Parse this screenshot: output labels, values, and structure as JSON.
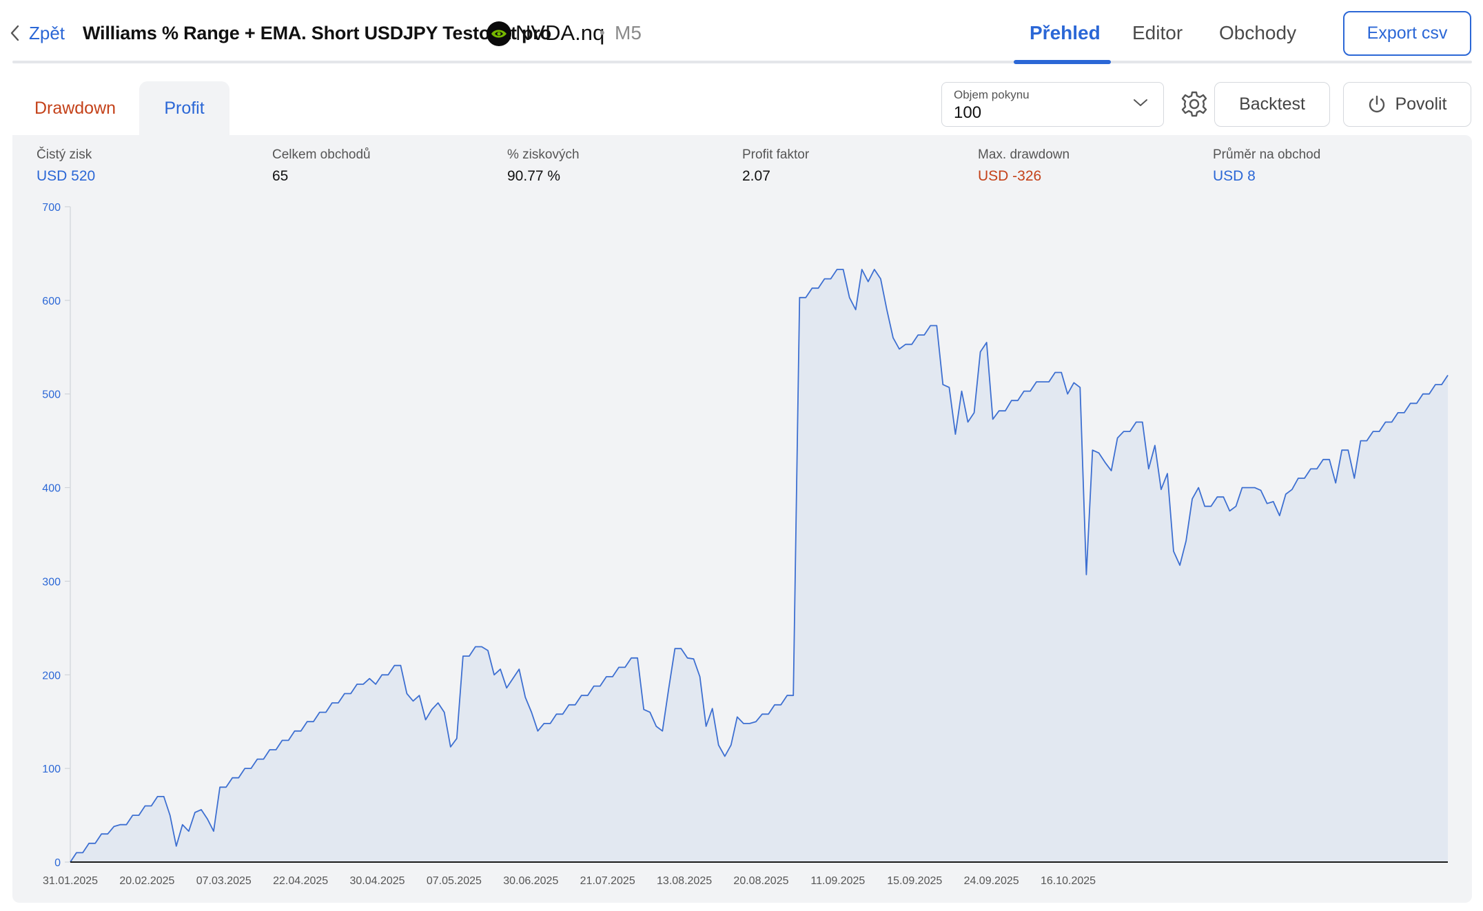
{
  "header": {
    "back_label": "Zpět",
    "strategy_title": "Williams % Range + EMA. Short USDJPY Testovat pro",
    "symbol": "NVDA.nq",
    "separator": "•",
    "timeframe": "M5",
    "tabs": [
      {
        "label": "Přehled",
        "active": true
      },
      {
        "label": "Editor",
        "active": false
      },
      {
        "label": "Obchody",
        "active": false
      }
    ],
    "export_label": "Export csv"
  },
  "subtabs": {
    "drawdown_label": "Drawdown",
    "profit_label": "Profit",
    "active": "Profit"
  },
  "controls": {
    "order_volume_label": "Objem pokynu",
    "order_volume_value": "100",
    "backtest_label": "Backtest",
    "enable_label": "Povolit"
  },
  "stats": [
    {
      "label": "Čistý zisk",
      "value": "USD 520",
      "color": "#2b67d6"
    },
    {
      "label": "Celkem obchodů",
      "value": "65",
      "color": "#111111"
    },
    {
      "label": "% ziskových",
      "value": "90.77 %",
      "color": "#111111"
    },
    {
      "label": "Profit faktor",
      "value": "2.07",
      "color": "#111111"
    },
    {
      "label": "Max. drawdown",
      "value": "USD -326",
      "color": "#c4421a"
    },
    {
      "label": "Průměr na obchod",
      "value": "USD 8",
      "color": "#2b67d6"
    }
  ],
  "colors": {
    "accent": "#2b67d6",
    "negative": "#c4421a",
    "panel_bg": "#f2f3f5",
    "area_fill": "#e2e8f1",
    "line": "#3d6fd1"
  },
  "icons": {
    "back": "chevron-left-icon",
    "symbol_logo": "nvidia-logo-icon",
    "select": "chevron-down-icon",
    "settings": "gear-icon",
    "enable": "power-icon"
  },
  "chart_data": {
    "type": "area",
    "title": "",
    "xlabel": "",
    "ylabel": "",
    "ylim": [
      0,
      700
    ],
    "y_ticks": [
      0,
      100,
      200,
      300,
      400,
      500,
      600,
      700
    ],
    "x_tick_labels": [
      "31.01.2025",
      "20.02.2025",
      "07.03.2025",
      "22.04.2025",
      "30.04.2025",
      "07.05.2025",
      "30.06.2025",
      "21.07.2025",
      "13.08.2025",
      "20.08.2025",
      "11.09.2025",
      "15.09.2025",
      "24.09.2025",
      "16.10.2025"
    ],
    "grid": false,
    "series": [
      {
        "values": [
          0,
          10,
          10,
          20,
          20,
          30,
          30,
          38,
          40,
          40,
          50,
          50,
          60,
          60,
          70,
          70,
          50,
          17,
          40,
          33,
          53,
          56,
          46,
          33,
          80,
          80,
          90,
          90,
          100,
          100,
          110,
          110,
          120,
          120,
          130,
          130,
          140,
          140,
          150,
          150,
          160,
          160,
          170,
          170,
          180,
          180,
          190,
          190,
          196,
          190,
          200,
          200,
          210,
          210,
          180,
          172,
          178,
          152,
          163,
          170,
          160,
          123,
          132,
          220,
          220,
          230,
          230,
          226,
          200,
          206,
          186,
          196,
          206,
          176,
          160,
          140,
          148,
          148,
          158,
          158,
          168,
          168,
          178,
          178,
          188,
          188,
          198,
          198,
          208,
          208,
          218,
          218,
          163,
          160,
          145,
          140,
          185,
          228,
          228,
          218,
          217,
          198,
          145,
          164,
          125,
          113,
          125,
          155,
          148,
          148,
          150,
          158,
          158,
          168,
          168,
          178,
          178,
          603,
          603,
          613,
          613,
          623,
          623,
          633,
          633,
          603,
          590,
          633,
          620,
          633,
          623,
          590,
          560,
          548,
          553,
          553,
          563,
          563,
          573,
          573,
          510,
          507,
          457,
          503,
          470,
          480,
          545,
          555,
          473,
          482,
          482,
          493,
          493,
          503,
          503,
          513,
          513,
          513,
          523,
          523,
          500,
          512,
          507,
          307,
          440,
          437,
          427,
          418,
          453,
          460,
          460,
          470,
          470,
          420,
          445,
          398,
          415,
          332,
          317,
          343,
          388,
          400,
          380,
          380,
          390,
          390,
          375,
          380,
          400,
          400,
          400,
          397,
          383,
          385,
          370,
          393,
          398,
          410,
          410,
          420,
          420,
          430,
          430,
          405,
          440,
          440,
          410,
          450,
          450,
          460,
          460,
          470,
          470,
          480,
          480,
          490,
          490,
          500,
          500,
          510,
          510,
          520
        ]
      }
    ]
  }
}
